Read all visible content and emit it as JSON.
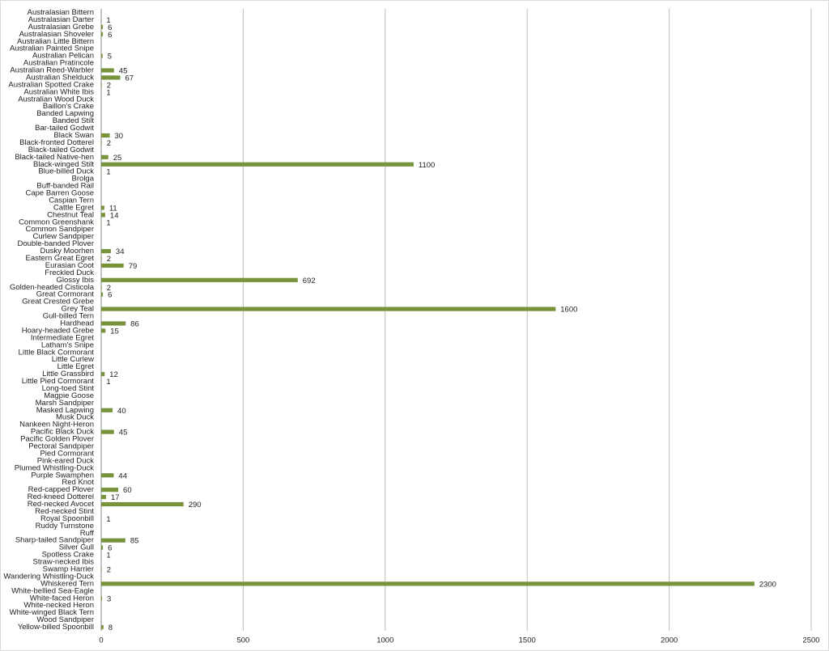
{
  "chart_data": {
    "type": "hbar",
    "color": "#77933c",
    "grid": true,
    "xlim": [
      0,
      2500
    ],
    "xticks": [
      0,
      500,
      1000,
      1500,
      2000,
      2500
    ],
    "categories": [
      "Australasian Bittern",
      "Australasian Darter",
      "Australasian Grebe",
      "Australasian Shoveler",
      "Australian Little Bittern",
      "Australian Painted Snipe",
      "Australian Pelican",
      "Australian Pratincole",
      "Australian Reed-Warbler",
      "Australian Shelduck",
      "Australian Spotted Crake",
      "Australian White Ibis",
      "Australian Wood Duck",
      "Baillon's Crake",
      "Banded Lapwing",
      "Banded Stilt",
      "Bar-tailed Godwit",
      "Black Swan",
      "Black-fronted Dotterel",
      "Black-tailed Godwit",
      "Black-tailed Native-hen",
      "Black-winged Stilt",
      "Blue-billed Duck",
      "Brolga",
      "Buff-banded Rail",
      "Cape Barren Goose",
      "Caspian Tern",
      "Cattle Egret",
      "Chestnut Teal",
      "Common Greenshank",
      "Common Sandpiper",
      "Curlew Sandpiper",
      "Double-banded Plover",
      "Dusky Moorhen",
      "Eastern Great Egret",
      "Eurasian Coot",
      "Freckled Duck",
      "Glossy Ibis",
      "Golden-headed Cisticola",
      "Great Cormorant",
      "Great Crested Grebe",
      "Grey Teal",
      "Gull-billed Tern",
      "Hardhead",
      "Hoary-headed Grebe",
      "Intermediate Egret",
      "Latham's Snipe",
      "Little Black Cormorant",
      "Little Curlew",
      "Little Egret",
      "Little Grassbird",
      "Little Pied Cormorant",
      "Long-toed Stint",
      "Magpie Goose",
      "Marsh Sandpiper",
      "Masked Lapwing",
      "Musk Duck",
      "Nankeen Night-Heron",
      "Pacific Black Duck",
      "Pacific Golden Plover",
      "Pectoral Sandpiper",
      "Pied Cormorant",
      "Pink-eared Duck",
      "Plumed Whistling-Duck",
      "Purple Swamphen",
      "Red Knot",
      "Red-capped Plover",
      "Red-kneed Dotterel",
      "Red-necked Avocet",
      "Red-necked Stint",
      "Royal Spoonbill",
      "Ruddy Turnstone",
      "Ruff",
      "Sharp-tailed Sandpiper",
      "Silver Gull",
      "Spotless Crake",
      "Straw-necked Ibis",
      "Swamp Harrier",
      "Wandering Whistling-Duck",
      "Whiskered Tern",
      "White-bellied Sea-Eagle",
      "White-faced Heron",
      "White-necked Heron",
      "White-winged Black Tern",
      "Wood Sandpiper",
      "Yellow-billed Spoonbill"
    ],
    "values": [
      null,
      1,
      6,
      6,
      null,
      null,
      5,
      null,
      45,
      67,
      2,
      1,
      null,
      null,
      null,
      null,
      null,
      30,
      2,
      null,
      25,
      1100,
      1,
      null,
      null,
      null,
      null,
      11,
      14,
      1,
      null,
      null,
      null,
      34,
      2,
      79,
      null,
      692,
      2,
      6,
      null,
      1600,
      null,
      86,
      15,
      null,
      null,
      null,
      null,
      null,
      12,
      1,
      null,
      null,
      null,
      40,
      null,
      null,
      45,
      null,
      null,
      null,
      null,
      null,
      44,
      null,
      60,
      17,
      290,
      null,
      1,
      null,
      null,
      85,
      6,
      1,
      null,
      2,
      null,
      2300,
      null,
      3,
      null,
      null,
      null,
      8
    ]
  }
}
